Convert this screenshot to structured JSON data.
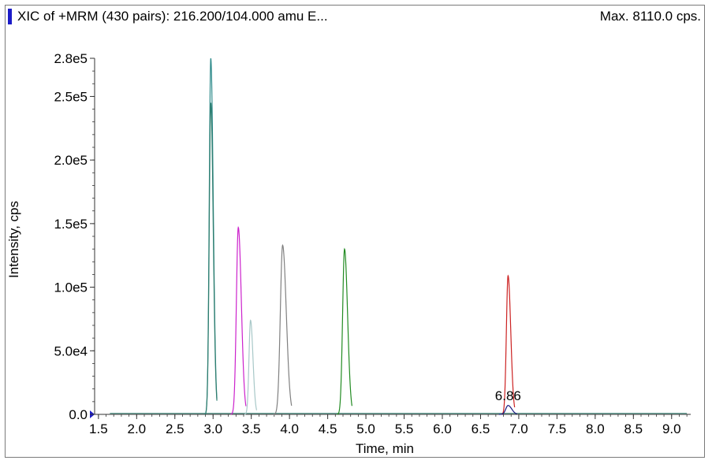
{
  "header": {
    "title": "XIC of +MRM (430 pairs): 216.200/104.000 amu E...",
    "max_label": "Max. 8110.0 cps."
  },
  "chart_data": {
    "type": "line",
    "xlabel": "Time, min",
    "ylabel": "Intensity, cps",
    "xlim": [
      1.45,
      9.25
    ],
    "ylim": [
      0,
      280000
    ],
    "x_ticks": [
      "1.5",
      "2.0",
      "2.5",
      "3.0",
      "3.5",
      "4.0",
      "4.5",
      "5.0",
      "5.5",
      "6.0",
      "6.5",
      "7.0",
      "7.5",
      "8.0",
      "8.5",
      "9.0"
    ],
    "y_ticks": [
      {
        "value": 0,
        "label": "0.0"
      },
      {
        "value": 50000,
        "label": "5.0e4"
      },
      {
        "value": 100000,
        "label": "1.0e5"
      },
      {
        "value": 150000,
        "label": "1.5e5"
      },
      {
        "value": 200000,
        "label": "2.0e5"
      },
      {
        "value": 250000,
        "label": "2.5e5"
      },
      {
        "value": 280000,
        "label": "2.8e5"
      }
    ],
    "grid": false,
    "peaks": [
      {
        "rt": 2.97,
        "height": 280000,
        "width": 0.02,
        "color": "#2e8b8b"
      },
      {
        "rt": 2.97,
        "height": 245000,
        "width": 0.02,
        "color": "#2e7d6e"
      },
      {
        "rt": 3.33,
        "height": 147000,
        "width": 0.025,
        "color": "#cc22cc"
      },
      {
        "rt": 3.49,
        "height": 74000,
        "width": 0.02,
        "color": "#a8c8c8"
      },
      {
        "rt": 3.91,
        "height": 133000,
        "width": 0.03,
        "color": "#808080"
      },
      {
        "rt": 4.72,
        "height": 130000,
        "width": 0.025,
        "color": "#228b22"
      },
      {
        "rt": 6.86,
        "height": 109000,
        "width": 0.022,
        "color": "#cc2222"
      },
      {
        "rt": 6.86,
        "height": 7000,
        "width": 0.03,
        "color": "#1a1a80"
      }
    ],
    "annotations": [
      {
        "x": 6.86,
        "text": "6.86"
      }
    ]
  },
  "colors": {
    "header_marker": "#1c1cc8",
    "axis": "#333333",
    "y_axis_arrow": "#1c1cc8"
  }
}
